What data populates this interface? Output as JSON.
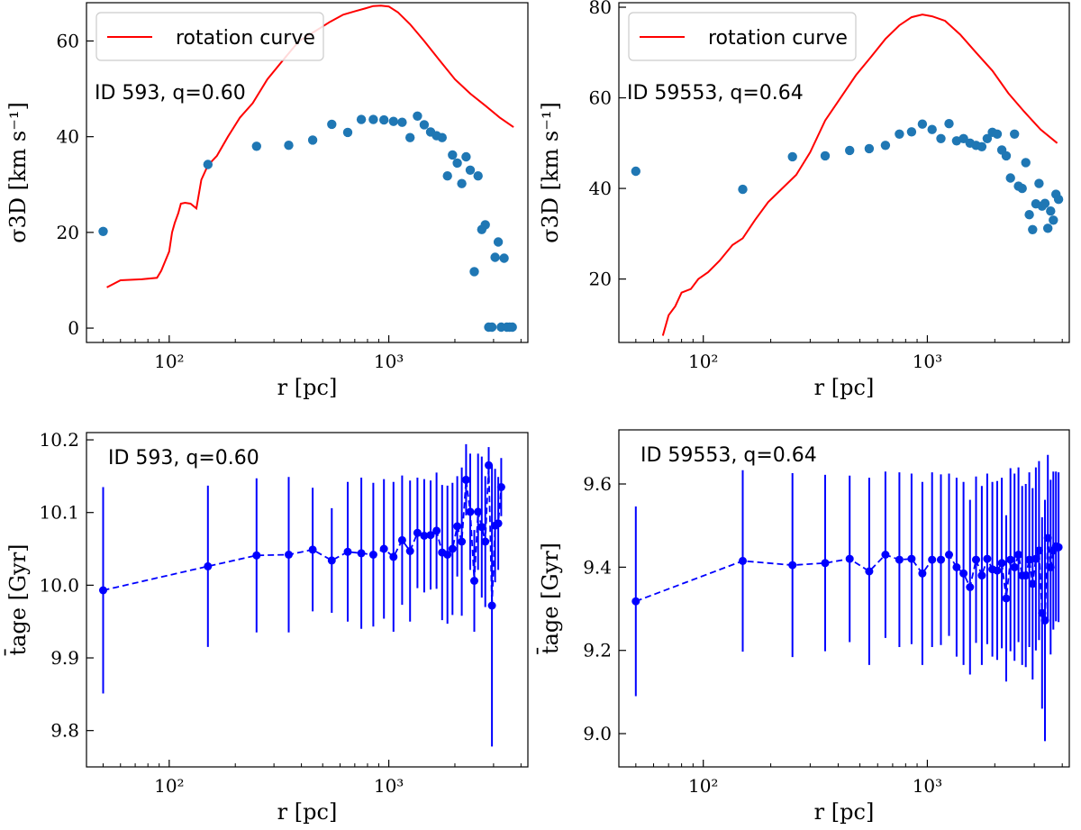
{
  "chart_data": [
    {
      "type": "line+scatter",
      "panel": "top-left",
      "xscale": "log",
      "xlim": [
        42,
        4300
      ],
      "ylim": [
        -3,
        68
      ],
      "xticks": [
        {
          "v": 100,
          "label": "10²"
        },
        {
          "v": 1000,
          "label": "10³"
        }
      ],
      "yticks": [
        {
          "v": 0,
          "label": "0"
        },
        {
          "v": 20,
          "label": "20"
        },
        {
          "v": 40,
          "label": "40"
        },
        {
          "v": 60,
          "label": "60"
        }
      ],
      "xlabel": "r [pc]",
      "ylabel": "σ3D [km s⁻¹]",
      "annotation": "ID 593, q=0.60",
      "legend": {
        "label": "rotation curve",
        "color": "#ff0000",
        "placement": "top-left"
      },
      "curve": {
        "name": "rotation curve",
        "color": "#ff0000",
        "x": [
          52,
          60,
          75,
          88,
          92,
          100,
          103,
          106,
          110,
          113,
          118,
          125,
          133,
          140,
          150,
          165,
          185,
          210,
          240,
          280,
          330,
          390,
          460,
          540,
          620,
          700,
          780,
          850,
          920,
          1000,
          1100,
          1250,
          1450,
          1700,
          2000,
          2350,
          2750,
          3200,
          3700
        ],
        "y": [
          8.5,
          10.0,
          10.2,
          10.5,
          12.0,
          16.0,
          20.0,
          22.0,
          24.0,
          26.0,
          26.2,
          26.0,
          25.0,
          31.0,
          34.0,
          36.0,
          40.0,
          44.0,
          47.0,
          52.0,
          56.0,
          60.0,
          62.0,
          64.0,
          65.5,
          66.2,
          66.8,
          67.3,
          67.4,
          67.2,
          66.0,
          63.5,
          60.0,
          56.0,
          52.0,
          49.0,
          46.5,
          44.0,
          42.0
        ]
      },
      "points": {
        "color": "#1f77b4",
        "x": [
          50,
          150,
          250,
          350,
          450,
          550,
          650,
          750,
          850,
          950,
          1050,
          1150,
          1250,
          1350,
          1450,
          1550,
          1650,
          1750,
          1850,
          1950,
          2050,
          2150,
          2250,
          2350,
          2450,
          2550,
          2650,
          2750,
          2850,
          2950,
          3050,
          3150,
          3250,
          3350,
          3450,
          3550,
          3650
        ],
        "y": [
          20.2,
          34.2,
          38.0,
          38.2,
          39.3,
          42.6,
          40.9,
          43.6,
          43.6,
          43.5,
          43.2,
          43.0,
          39.8,
          44.3,
          42.5,
          41.0,
          40.2,
          39.8,
          31.8,
          36.2,
          34.5,
          30.2,
          35.8,
          33.0,
          11.8,
          31.8,
          20.6,
          21.6,
          0.2,
          0.2,
          14.8,
          18.0,
          0.2,
          14.6,
          0.2,
          0.2,
          0.2
        ]
      }
    },
    {
      "type": "line+scatter",
      "panel": "top-right",
      "xscale": "log",
      "xlim": [
        42,
        4300
      ],
      "ylim": [
        6,
        81
      ],
      "xticks": [
        {
          "v": 100,
          "label": "10²"
        },
        {
          "v": 1000,
          "label": "10³"
        }
      ],
      "yticks": [
        {
          "v": 20,
          "label": "20"
        },
        {
          "v": 40,
          "label": "40"
        },
        {
          "v": 60,
          "label": "60"
        },
        {
          "v": 80,
          "label": "80"
        }
      ],
      "xlabel": "r [pc]",
      "ylabel": "σ3D [km s⁻¹]",
      "annotation": "ID 59553, q=0.64",
      "legend": {
        "label": "rotation curve",
        "color": "#ff0000",
        "placement": "top-left"
      },
      "curve": {
        "name": "rotation curve",
        "color": "#ff0000",
        "x": [
          66,
          70,
          75,
          80,
          88,
          95,
          105,
          118,
          135,
          150,
          170,
          195,
          225,
          260,
          300,
          350,
          410,
          480,
          560,
          650,
          750,
          850,
          950,
          1050,
          1200,
          1400,
          1650,
          1950,
          2300,
          2700,
          3200,
          3800
        ],
        "y": [
          7.5,
          12.0,
          14.0,
          17.0,
          17.8,
          20.0,
          21.5,
          24.0,
          27.5,
          29.0,
          33.0,
          37.0,
          40.0,
          43.0,
          48.0,
          55.0,
          60.0,
          65.0,
          69.0,
          73.0,
          76.0,
          77.8,
          78.4,
          78.0,
          77.0,
          74.0,
          70.0,
          66.0,
          61.0,
          57.0,
          53.0,
          50.0
        ]
      },
      "points": {
        "color": "#1f77b4",
        "x": [
          50,
          150,
          250,
          350,
          450,
          550,
          650,
          750,
          850,
          950,
          1050,
          1150,
          1250,
          1350,
          1450,
          1550,
          1650,
          1750,
          1850,
          1950,
          2050,
          2150,
          2250,
          2350,
          2450,
          2550,
          2650,
          2750,
          2850,
          2950,
          3050,
          3150,
          3250,
          3350,
          3450,
          3550,
          3650,
          3750,
          3850
        ],
        "y": [
          43.8,
          39.8,
          47.0,
          47.2,
          48.4,
          48.8,
          49.5,
          52.0,
          52.5,
          54.2,
          53.0,
          51.0,
          54.3,
          50.5,
          51.0,
          50.0,
          49.5,
          49.2,
          51.0,
          52.4,
          52.0,
          48.5,
          47.2,
          42.3,
          52.0,
          40.5,
          40.0,
          45.7,
          34.2,
          30.9,
          36.6,
          41.1,
          36.1,
          36.7,
          31.2,
          35.0,
          33.0,
          38.7,
          37.6
        ]
      }
    },
    {
      "type": "errorbar",
      "panel": "bottom-left",
      "xscale": "log",
      "xlim": [
        42,
        4300
      ],
      "ylim": [
        9.75,
        10.21
      ],
      "xticks": [
        {
          "v": 100,
          "label": "10²"
        },
        {
          "v": 1000,
          "label": "10³"
        }
      ],
      "yticks": [
        {
          "v": 9.8,
          "label": "9.8"
        },
        {
          "v": 9.9,
          "label": "9.9"
        },
        {
          "v": 10.0,
          "label": "10.0"
        },
        {
          "v": 10.1,
          "label": "10.1"
        },
        {
          "v": 10.2,
          "label": "10.2"
        }
      ],
      "xlabel": "r [pc]",
      "ylabel": "t̄age [Gyr]",
      "annotation": "ID 593, q=0.60",
      "series": {
        "color": "#0000ff",
        "x": [
          50,
          150,
          250,
          350,
          450,
          550,
          650,
          750,
          850,
          950,
          1050,
          1150,
          1250,
          1350,
          1450,
          1550,
          1650,
          1750,
          1850,
          1950,
          2050,
          2150,
          2250,
          2350,
          2450,
          2550,
          2650,
          2750,
          2850,
          2950,
          3050,
          3150,
          3250
        ],
        "y": [
          9.993,
          10.026,
          10.041,
          10.042,
          10.049,
          10.034,
          10.046,
          10.044,
          10.042,
          10.05,
          10.039,
          10.062,
          10.047,
          10.072,
          10.068,
          10.069,
          10.075,
          10.045,
          10.042,
          10.05,
          10.081,
          10.06,
          10.145,
          10.101,
          10.006,
          10.101,
          10.08,
          10.06,
          10.165,
          9.972,
          10.082,
          10.085,
          10.135
        ],
        "err": [
          0.142,
          0.111,
          0.106,
          0.107,
          0.085,
          0.072,
          0.096,
          0.104,
          0.099,
          0.096,
          0.103,
          0.089,
          0.097,
          0.076,
          0.078,
          0.075,
          0.08,
          0.093,
          0.095,
          0.091,
          0.069,
          0.102,
          0.049,
          0.08,
          0.07,
          0.08,
          0.097,
          0.09,
          0.025,
          0.194,
          0.078,
          0.064,
          0.04
        ]
      }
    },
    {
      "type": "errorbar",
      "panel": "bottom-right",
      "xscale": "log",
      "xlim": [
        42,
        4300
      ],
      "ylim": [
        8.92,
        9.73
      ],
      "xticks": [
        {
          "v": 100,
          "label": "10²"
        },
        {
          "v": 1000,
          "label": "10³"
        }
      ],
      "yticks": [
        {
          "v": 9.0,
          "label": "9.0"
        },
        {
          "v": 9.2,
          "label": "9.2"
        },
        {
          "v": 9.4,
          "label": "9.4"
        },
        {
          "v": 9.6,
          "label": "9.6"
        }
      ],
      "xlabel": "r [pc]",
      "ylabel": "t̄age [Gyr]",
      "annotation": "ID 59553, q=0.64",
      "series": {
        "color": "#0000ff",
        "x": [
          50,
          150,
          250,
          350,
          450,
          550,
          650,
          750,
          850,
          950,
          1050,
          1150,
          1250,
          1350,
          1450,
          1550,
          1650,
          1750,
          1850,
          1950,
          2050,
          2150,
          2250,
          2350,
          2450,
          2550,
          2650,
          2750,
          2850,
          2950,
          3050,
          3150,
          3250,
          3350,
          3450,
          3550,
          3650,
          3750,
          3850
        ],
        "y": [
          9.318,
          9.415,
          9.405,
          9.41,
          9.42,
          9.39,
          9.43,
          9.418,
          9.42,
          9.385,
          9.418,
          9.418,
          9.43,
          9.4,
          9.385,
          9.352,
          9.418,
          9.38,
          9.42,
          9.395,
          9.392,
          9.41,
          9.325,
          9.418,
          9.4,
          9.43,
          9.38,
          9.38,
          9.418,
          9.36,
          9.42,
          9.44,
          9.29,
          9.272,
          9.47,
          9.4,
          9.44,
          9.45,
          9.448
        ],
        "err": [
          0.228,
          0.218,
          0.221,
          0.212,
          0.2,
          0.225,
          0.2,
          0.21,
          0.205,
          0.22,
          0.21,
          0.205,
          0.195,
          0.215,
          0.22,
          0.21,
          0.2,
          0.215,
          0.205,
          0.21,
          0.215,
          0.205,
          0.2,
          0.22,
          0.225,
          0.21,
          0.215,
          0.22,
          0.21,
          0.23,
          0.22,
          0.215,
          0.23,
          0.29,
          0.2,
          0.21,
          0.19,
          0.18,
          0.18
        ]
      }
    }
  ]
}
